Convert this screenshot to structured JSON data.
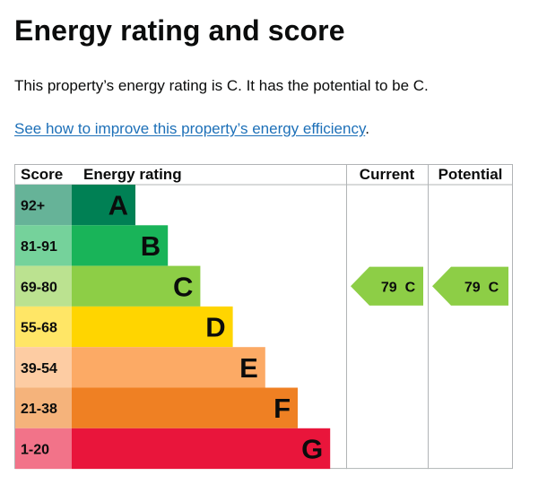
{
  "heading": "Energy rating and score",
  "summary": "This property’s energy rating is C. It has the potential to be C.",
  "improve_link": "See how to improve this property’s energy efficiency",
  "improve_suffix": ".",
  "chart_data": {
    "type": "bar",
    "headers": {
      "score": "Score",
      "rating": "Energy rating",
      "current": "Current",
      "potential": "Potential"
    },
    "bands": [
      {
        "score_range": "92+",
        "letter": "A",
        "color": "#008054",
        "score_color": "#66b398"
      },
      {
        "score_range": "81-91",
        "letter": "B",
        "color": "#19b459",
        "score_color": "#75d29b"
      },
      {
        "score_range": "69-80",
        "letter": "C",
        "color": "#8dce46",
        "score_color": "#bbe290"
      },
      {
        "score_range": "55-68",
        "letter": "D",
        "color": "#ffd500",
        "score_color": "#ffe666"
      },
      {
        "score_range": "39-54",
        "letter": "E",
        "color": "#fcaa65",
        "score_color": "#fdcca3"
      },
      {
        "score_range": "21-38",
        "letter": "F",
        "color": "#ef8023",
        "score_color": "#f5b37b"
      },
      {
        "score_range": "1-20",
        "letter": "G",
        "color": "#e9153b",
        "score_color": "#f27389"
      }
    ],
    "current": {
      "score": 79,
      "band": "C",
      "label": "79  C",
      "color": "#8dce46"
    },
    "potential": {
      "score": 79,
      "band": "C",
      "label": "79  C",
      "color": "#8dce46"
    }
  }
}
